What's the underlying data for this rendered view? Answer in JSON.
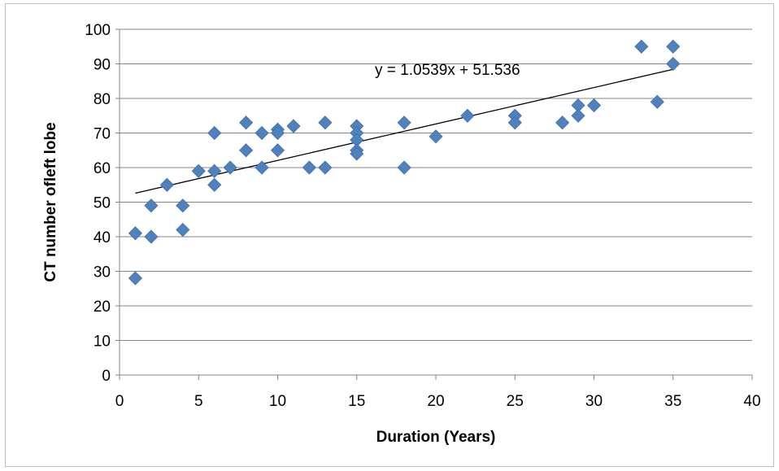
{
  "chart_data": {
    "type": "scatter",
    "title": "",
    "xlabel": "Duration (Years)",
    "ylabel": "CT number ofleft lobe",
    "xlim": [
      0,
      40
    ],
    "ylim": [
      0,
      100
    ],
    "x_ticks": [
      0,
      5,
      10,
      15,
      20,
      25,
      30,
      35,
      40
    ],
    "y_ticks": [
      0,
      10,
      20,
      30,
      40,
      50,
      60,
      70,
      80,
      90,
      100
    ],
    "grid": "horizontal",
    "legend": "none",
    "marker": "diamond",
    "marker_color": "#4f81bd",
    "series": [
      {
        "points": [
          [
            1,
            41
          ],
          [
            1,
            28
          ],
          [
            2,
            49
          ],
          [
            2,
            40
          ],
          [
            3,
            55
          ],
          [
            4,
            49
          ],
          [
            4,
            42
          ],
          [
            5,
            59
          ],
          [
            6,
            70
          ],
          [
            6,
            59
          ],
          [
            6,
            55
          ],
          [
            7,
            60
          ],
          [
            8,
            73
          ],
          [
            8,
            65
          ],
          [
            9,
            70
          ],
          [
            9,
            60
          ],
          [
            10,
            71
          ],
          [
            10,
            70
          ],
          [
            10,
            65
          ],
          [
            11,
            72
          ],
          [
            12,
            60
          ],
          [
            13,
            73
          ],
          [
            13,
            60
          ],
          [
            15,
            72
          ],
          [
            15,
            70
          ],
          [
            15,
            68
          ],
          [
            15,
            65
          ],
          [
            15,
            64
          ],
          [
            18,
            73
          ],
          [
            18,
            60
          ],
          [
            20,
            69
          ],
          [
            22,
            75
          ],
          [
            25,
            75
          ],
          [
            25,
            73
          ],
          [
            28,
            73
          ],
          [
            29,
            78
          ],
          [
            29,
            75
          ],
          [
            30,
            78
          ],
          [
            33,
            95
          ],
          [
            34,
            79
          ],
          [
            35,
            95
          ],
          [
            35,
            90
          ]
        ]
      }
    ],
    "trendline": {
      "slope": 1.0539,
      "intercept": 51.536,
      "x_range": [
        1,
        35
      ],
      "equation_label": "y = 1.0539x + 51.536",
      "color": "#000000"
    }
  }
}
